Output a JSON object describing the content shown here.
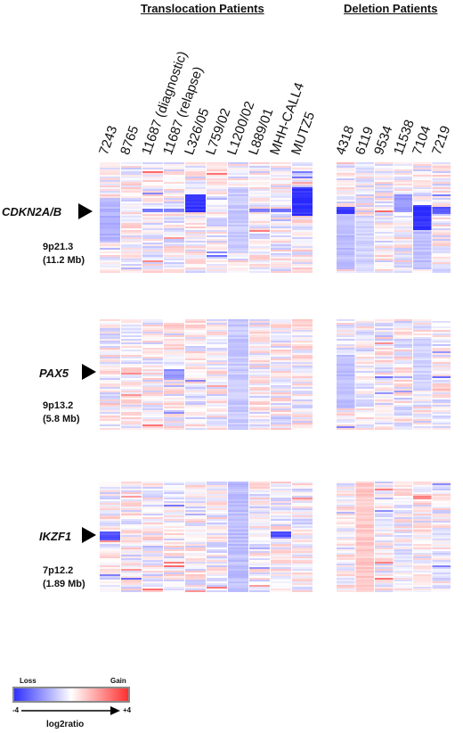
{
  "headers": {
    "translocation": "Translocation Patients",
    "deletion": "Deletion Patients"
  },
  "translocation_samples": [
    "7243",
    "8765",
    "11687 (diagnostic)",
    "11687 (relapse)",
    "L326/05",
    "L759/02",
    "L1200/02",
    "L889/01",
    "MHH-CALL4",
    "MUTZ5"
  ],
  "deletion_samples": [
    "4318",
    "6119",
    "9534",
    "11538",
    "7104",
    "7219"
  ],
  "loci": [
    {
      "gene": "CDKN2A/B",
      "band": "9p21.3",
      "size": "(11.2 Mb)"
    },
    {
      "gene": "PAX5",
      "band": "9p13.2",
      "size": "(5.8 Mb)"
    },
    {
      "gene": "IKZF1",
      "band": "7p12.2",
      "size": "(1.89 Mb)"
    }
  ],
  "legend": {
    "loss": "Loss",
    "gain": "Gain",
    "min": "-4",
    "max": "+4",
    "title": "log2ratio",
    "colors": {
      "loss": "#3030ff",
      "neutral": "#ffffff",
      "gain": "#ff3030"
    }
  }
}
